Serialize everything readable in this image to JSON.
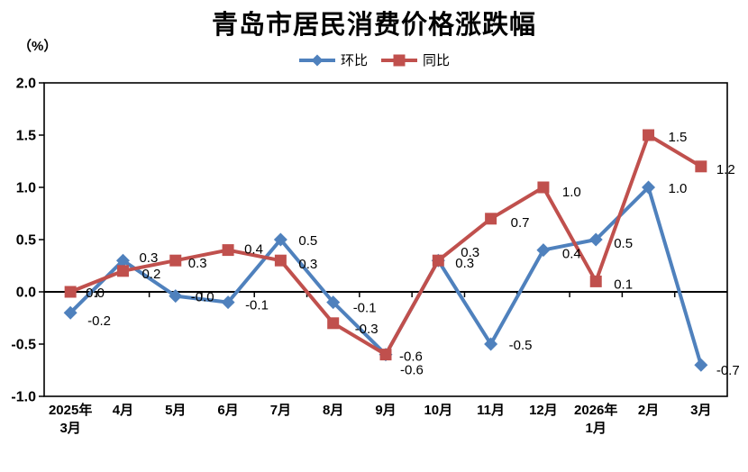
{
  "chart_data": {
    "type": "line",
    "title": "青岛市居民消费价格涨跌幅",
    "unit": "（%）",
    "legend_position": "top",
    "grid": false,
    "categories": [
      [
        "2025年",
        "3月"
      ],
      [
        "4月"
      ],
      [
        "5月"
      ],
      [
        "6月"
      ],
      [
        "7月"
      ],
      [
        "8月"
      ],
      [
        "9月"
      ],
      [
        "10月"
      ],
      [
        "11月"
      ],
      [
        "12月"
      ],
      [
        "2026年",
        "1月"
      ],
      [
        "2月"
      ],
      [
        "3月"
      ]
    ],
    "y_axis": {
      "min": -1.0,
      "max": 2.0,
      "step": 0.5,
      "tick_labels": [
        "2.0",
        "1.5",
        "1.0",
        "0.5",
        "0.0",
        "-0.5",
        "-1.0"
      ]
    },
    "series": [
      {
        "name": "环比",
        "color": "#4F81BD",
        "marker": "diamond",
        "values": [
          -0.2,
          0.3,
          -0.04,
          -0.1,
          0.5,
          -0.1,
          -0.6,
          0.3,
          -0.5,
          0.4,
          0.5,
          1.0,
          -0.7
        ],
        "labels": [
          "-0.2",
          "0.3",
          "-0.0",
          "-0.1",
          "0.5",
          "-0.1",
          "-0.6",
          "0.3",
          "-0.5",
          "0.4",
          "0.5",
          "1.0",
          "-0.7"
        ],
        "label_offsets": [
          [
            19,
            9
          ],
          [
            18,
            -3
          ],
          [
            17,
            1
          ],
          [
            19,
            3
          ],
          [
            20,
            1
          ],
          [
            22,
            6
          ],
          [
            16,
            17
          ],
          [
            19,
            3
          ],
          [
            20,
            1
          ],
          [
            21,
            4
          ],
          [
            20,
            4
          ],
          [
            22,
            1
          ],
          [
            17,
            6
          ]
        ]
      },
      {
        "name": "同比",
        "color": "#C0504D",
        "marker": "square",
        "values": [
          0.0,
          0.2,
          0.3,
          0.4,
          0.3,
          -0.3,
          -0.6,
          0.3,
          0.7,
          1.0,
          0.1,
          1.5,
          1.2
        ],
        "labels": [
          "0.0",
          "0.2",
          "0.3",
          "0.4",
          "0.3",
          "-0.3",
          "-0.6",
          "0.3",
          "0.7",
          "1.0",
          "0.1",
          "1.5",
          "1.2"
        ],
        "label_offsets": [
          [
            17,
            1
          ],
          [
            21,
            3
          ],
          [
            14,
            3
          ],
          [
            18,
            -1
          ],
          [
            20,
            4
          ],
          [
            24,
            6
          ],
          [
            15,
            2
          ],
          [
            25,
            -9
          ],
          [
            22,
            4
          ],
          [
            21,
            5
          ],
          [
            20,
            3
          ],
          [
            22,
            2
          ],
          [
            17,
            3
          ]
        ]
      }
    ]
  }
}
